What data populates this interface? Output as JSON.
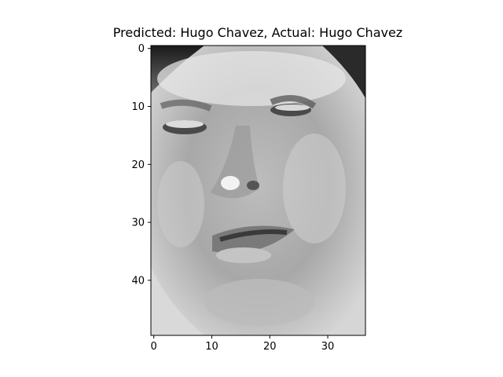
{
  "figure": {
    "title": "Predicted: Hugo Chavez, Actual: Hugo Chavez",
    "image": {
      "description_icon": "grayscale-face-image",
      "pixel_grid": {
        "columns": 37,
        "rows": 50
      },
      "colormap": "gray"
    },
    "x_axis": {
      "ticks": [
        "0",
        "10",
        "20",
        "30"
      ],
      "tick_values": [
        0,
        10,
        20,
        30
      ]
    },
    "y_axis": {
      "ticks": [
        "0",
        "10",
        "20",
        "30",
        "40"
      ],
      "tick_values": [
        0,
        10,
        20,
        30,
        40
      ]
    }
  }
}
